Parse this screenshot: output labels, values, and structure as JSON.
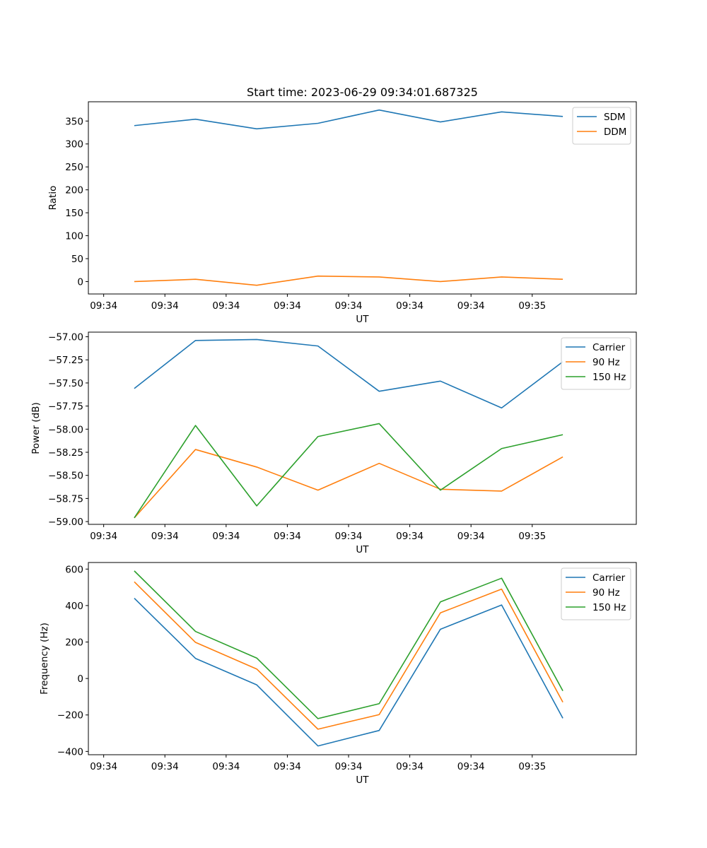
{
  "chart_data": [
    {
      "type": "line",
      "title": "Start time: 2023-06-29 09:34:01.687325",
      "xlabel": "UT",
      "ylabel": "Ratio",
      "x_ticks": [
        "09:34",
        "09:34",
        "09:34",
        "09:34",
        "09:34",
        "09:34",
        "09:34",
        "09:35"
      ],
      "x_points": [
        1,
        2,
        3,
        4,
        5,
        6,
        7,
        8
      ],
      "xlim": [
        0.25,
        9.2
      ],
      "ylim": [
        -27,
        392
      ],
      "yticks": [
        0,
        50,
        100,
        150,
        200,
        250,
        300,
        350
      ],
      "ytick_labels": [
        "0",
        "50",
        "100",
        "150",
        "200",
        "250",
        "300",
        "350"
      ],
      "legend_position": "top-right",
      "series": [
        {
          "name": "SDM",
          "color": "#1f77b4",
          "values": [
            340,
            354,
            333,
            345,
            374,
            348,
            370,
            360
          ]
        },
        {
          "name": "DDM",
          "color": "#ff7f0e",
          "values": [
            0,
            5,
            -8,
            12,
            10,
            0,
            10,
            5
          ]
        }
      ]
    },
    {
      "type": "line",
      "title": "",
      "xlabel": "UT",
      "ylabel": "Power (dB)",
      "x_ticks": [
        "09:34",
        "09:34",
        "09:34",
        "09:34",
        "09:34",
        "09:34",
        "09:34",
        "09:35"
      ],
      "x_points": [
        1,
        2,
        3,
        4,
        5,
        6,
        7,
        8
      ],
      "xlim": [
        0.25,
        9.2
      ],
      "ylim": [
        -59.03,
        -56.95
      ],
      "yticks": [
        -59.0,
        -58.75,
        -58.5,
        -58.25,
        -58.0,
        -57.75,
        -57.5,
        -57.25,
        -57.0
      ],
      "ytick_labels": [
        "−59.00",
        "−58.75",
        "−58.50",
        "−58.25",
        "−58.00",
        "−57.75",
        "−57.50",
        "−57.25",
        "−57.00"
      ],
      "legend_position": "top-right",
      "series": [
        {
          "name": "Carrier",
          "color": "#1f77b4",
          "values": [
            -57.56,
            -57.04,
            -57.03,
            -57.1,
            -57.59,
            -57.48,
            -57.77,
            -57.27
          ]
        },
        {
          "name": "90 Hz",
          "color": "#ff7f0e",
          "values": [
            -58.96,
            -58.22,
            -58.41,
            -58.66,
            -58.37,
            -58.65,
            -58.67,
            -58.3
          ]
        },
        {
          "name": "150 Hz",
          "color": "#2ca02c",
          "values": [
            -58.96,
            -57.96,
            -58.83,
            -58.08,
            -57.94,
            -58.66,
            -58.21,
            -58.06
          ]
        }
      ]
    },
    {
      "type": "line",
      "title": "",
      "xlabel": "UT",
      "ylabel": "Frequency (Hz)",
      "x_ticks": [
        "09:34",
        "09:34",
        "09:34",
        "09:34",
        "09:34",
        "09:34",
        "09:34",
        "09:35"
      ],
      "x_points": [
        1,
        2,
        3,
        4,
        5,
        6,
        7,
        8
      ],
      "xlim": [
        0.25,
        9.2
      ],
      "ylim": [
        -418,
        636
      ],
      "yticks": [
        -400,
        -200,
        0,
        200,
        400,
        600
      ],
      "ytick_labels": [
        "−400",
        "−200",
        "0",
        "200",
        "400",
        "600"
      ],
      "legend_position": "top-right",
      "series": [
        {
          "name": "Carrier",
          "color": "#1f77b4",
          "values": [
            440,
            110,
            -35,
            -370,
            -285,
            270,
            403,
            -218
          ]
        },
        {
          "name": "90 Hz",
          "color": "#ff7f0e",
          "values": [
            530,
            198,
            52,
            -278,
            -198,
            360,
            490,
            -130
          ]
        },
        {
          "name": "150 Hz",
          "color": "#2ca02c",
          "values": [
            590,
            258,
            112,
            -220,
            -138,
            420,
            550,
            -68
          ]
        }
      ]
    }
  ]
}
